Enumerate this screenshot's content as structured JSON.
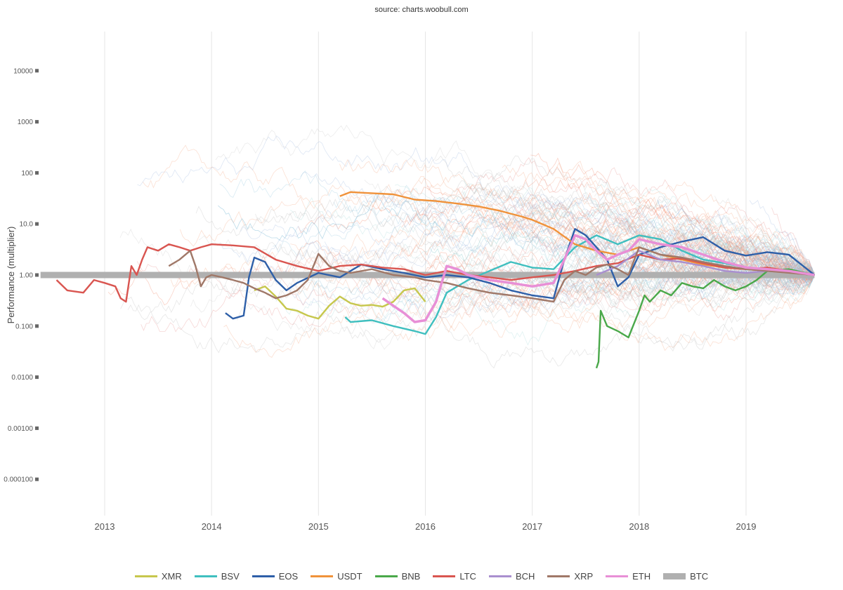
{
  "header": {
    "source": "source: charts.woobull.com"
  },
  "chart_data": {
    "type": "line",
    "title": "",
    "xlabel": "",
    "ylabel": "Performance (multiplier)",
    "y_scale": "log",
    "ylim": [
      3e-05,
      60000
    ],
    "x_range": [
      "2012-05",
      "2019-09"
    ],
    "x_ticks": [
      "2013",
      "2014",
      "2015",
      "2016",
      "2017",
      "2018",
      "2019"
    ],
    "y_ticks": [
      "10000",
      "1000",
      "100",
      "10.0",
      "1.00",
      "0.100",
      "0.0100",
      "0.00100",
      "0.000100"
    ],
    "grid": true,
    "legend_position": "bottom-center",
    "series": [
      {
        "name": "XMR",
        "color": "#c7c74d",
        "points": [
          [
            2014.4,
            0.5
          ],
          [
            2014.5,
            0.6
          ],
          [
            2014.6,
            0.38
          ],
          [
            2014.7,
            0.22
          ],
          [
            2014.8,
            0.2
          ],
          [
            2014.9,
            0.16
          ],
          [
            2015.0,
            0.14
          ],
          [
            2015.1,
            0.25
          ],
          [
            2015.2,
            0.38
          ],
          [
            2015.3,
            0.28
          ],
          [
            2015.4,
            0.25
          ],
          [
            2015.5,
            0.26
          ],
          [
            2015.6,
            0.24
          ],
          [
            2015.7,
            0.3
          ],
          [
            2015.8,
            0.5
          ],
          [
            2015.9,
            0.55
          ],
          [
            2016.0,
            0.3
          ]
        ]
      },
      {
        "name": "BSV",
        "color": "#3fbfbf",
        "points": [
          [
            2015.25,
            0.15
          ],
          [
            2015.3,
            0.12
          ],
          [
            2015.5,
            0.13
          ],
          [
            2015.7,
            0.1
          ],
          [
            2015.9,
            0.08
          ],
          [
            2016.0,
            0.07
          ],
          [
            2016.1,
            0.15
          ],
          [
            2016.2,
            0.45
          ],
          [
            2016.4,
            0.8
          ],
          [
            2016.6,
            1.2
          ],
          [
            2016.8,
            1.8
          ],
          [
            2017.0,
            1.4
          ],
          [
            2017.2,
            1.3
          ],
          [
            2017.4,
            3.5
          ],
          [
            2017.6,
            6.0
          ],
          [
            2017.8,
            4.0
          ],
          [
            2018.0,
            6.0
          ],
          [
            2018.2,
            5.0
          ],
          [
            2018.4,
            3.0
          ],
          [
            2018.6,
            2.0
          ],
          [
            2018.8,
            1.7
          ],
          [
            2019.0,
            1.4
          ],
          [
            2019.2,
            1.3
          ],
          [
            2019.4,
            1.2
          ],
          [
            2019.64,
            1.0
          ]
        ]
      },
      {
        "name": "EOS",
        "color": "#2e5fa8",
        "points": [
          [
            2014.13,
            0.18
          ],
          [
            2014.2,
            0.14
          ],
          [
            2014.3,
            0.16
          ],
          [
            2014.35,
            0.9
          ],
          [
            2014.4,
            2.2
          ],
          [
            2014.5,
            1.8
          ],
          [
            2014.6,
            0.8
          ],
          [
            2014.7,
            0.5
          ],
          [
            2014.8,
            0.7
          ],
          [
            2015.0,
            1.1
          ],
          [
            2015.2,
            0.9
          ],
          [
            2015.4,
            1.6
          ],
          [
            2015.6,
            1.3
          ],
          [
            2015.8,
            1.1
          ],
          [
            2016.0,
            0.9
          ],
          [
            2016.2,
            1.0
          ],
          [
            2016.4,
            0.9
          ],
          [
            2016.6,
            0.7
          ],
          [
            2016.8,
            0.5
          ],
          [
            2017.0,
            0.4
          ],
          [
            2017.2,
            0.35
          ],
          [
            2017.3,
            2.0
          ],
          [
            2017.4,
            8.0
          ],
          [
            2017.5,
            6.0
          ],
          [
            2017.6,
            3.5
          ],
          [
            2017.7,
            2.0
          ],
          [
            2017.8,
            0.6
          ],
          [
            2017.9,
            0.9
          ],
          [
            2018.0,
            2.5
          ],
          [
            2018.2,
            3.5
          ],
          [
            2018.4,
            4.5
          ],
          [
            2018.6,
            5.5
          ],
          [
            2018.8,
            3.0
          ],
          [
            2019.0,
            2.4
          ],
          [
            2019.2,
            2.8
          ],
          [
            2019.4,
            2.5
          ],
          [
            2019.64,
            1.0
          ]
        ]
      },
      {
        "name": "USDT",
        "color": "#f0923a",
        "points": [
          [
            2015.2,
            35
          ],
          [
            2015.3,
            42
          ],
          [
            2015.5,
            40
          ],
          [
            2015.7,
            38
          ],
          [
            2015.9,
            30
          ],
          [
            2016.1,
            28
          ],
          [
            2016.3,
            25
          ],
          [
            2016.5,
            22
          ],
          [
            2016.7,
            18
          ],
          [
            2016.9,
            14
          ],
          [
            2017.0,
            12
          ],
          [
            2017.2,
            8
          ],
          [
            2017.4,
            4
          ],
          [
            2017.6,
            3
          ],
          [
            2017.8,
            2.5
          ],
          [
            2018.0,
            3.5
          ],
          [
            2018.2,
            2.5
          ],
          [
            2018.4,
            2.0
          ],
          [
            2018.6,
            1.6
          ],
          [
            2018.8,
            1.4
          ],
          [
            2019.0,
            1.3
          ],
          [
            2019.2,
            1.2
          ],
          [
            2019.64,
            1.0
          ]
        ]
      },
      {
        "name": "BNB",
        "color": "#4aa84a",
        "points": [
          [
            2017.6,
            0.015
          ],
          [
            2017.62,
            0.02
          ],
          [
            2017.64,
            0.2
          ],
          [
            2017.7,
            0.1
          ],
          [
            2017.8,
            0.08
          ],
          [
            2017.9,
            0.06
          ],
          [
            2018.0,
            0.2
          ],
          [
            2018.05,
            0.4
          ],
          [
            2018.1,
            0.3
          ],
          [
            2018.2,
            0.5
          ],
          [
            2018.3,
            0.4
          ],
          [
            2018.4,
            0.7
          ],
          [
            2018.5,
            0.6
          ],
          [
            2018.6,
            0.55
          ],
          [
            2018.7,
            0.8
          ],
          [
            2018.8,
            0.6
          ],
          [
            2018.9,
            0.5
          ],
          [
            2019.0,
            0.6
          ],
          [
            2019.1,
            0.8
          ],
          [
            2019.2,
            1.2
          ],
          [
            2019.4,
            1.3
          ],
          [
            2019.64,
            1.0
          ]
        ]
      },
      {
        "name": "LTC",
        "color": "#d95550",
        "points": [
          [
            2012.55,
            0.8
          ],
          [
            2012.65,
            0.5
          ],
          [
            2012.8,
            0.45
          ],
          [
            2012.9,
            0.8
          ],
          [
            2013.0,
            0.7
          ],
          [
            2013.1,
            0.6
          ],
          [
            2013.15,
            0.35
          ],
          [
            2013.2,
            0.3
          ],
          [
            2013.25,
            1.5
          ],
          [
            2013.3,
            1.0
          ],
          [
            2013.35,
            2.0
          ],
          [
            2013.4,
            3.5
          ],
          [
            2013.5,
            3.0
          ],
          [
            2013.6,
            4.0
          ],
          [
            2013.7,
            3.5
          ],
          [
            2013.8,
            3.0
          ],
          [
            2013.9,
            3.5
          ],
          [
            2014.0,
            4.0
          ],
          [
            2014.2,
            3.8
          ],
          [
            2014.4,
            3.5
          ],
          [
            2014.6,
            2.0
          ],
          [
            2014.8,
            1.5
          ],
          [
            2015.0,
            1.2
          ],
          [
            2015.2,
            1.5
          ],
          [
            2015.4,
            1.6
          ],
          [
            2015.6,
            1.4
          ],
          [
            2015.8,
            1.3
          ],
          [
            2016.0,
            1.0
          ],
          [
            2016.2,
            1.2
          ],
          [
            2016.4,
            1.0
          ],
          [
            2016.6,
            0.9
          ],
          [
            2016.8,
            0.8
          ],
          [
            2017.0,
            0.9
          ],
          [
            2017.2,
            1.0
          ],
          [
            2017.4,
            1.2
          ],
          [
            2017.6,
            1.5
          ],
          [
            2017.8,
            1.7
          ],
          [
            2018.0,
            2.5
          ],
          [
            2018.2,
            2.0
          ],
          [
            2018.4,
            2.1
          ],
          [
            2018.6,
            1.7
          ],
          [
            2018.8,
            1.4
          ],
          [
            2019.0,
            1.3
          ],
          [
            2019.2,
            1.4
          ],
          [
            2019.4,
            1.2
          ],
          [
            2019.64,
            1.0
          ]
        ]
      },
      {
        "name": "BCH",
        "color": "#a98fcf",
        "points": [
          [
            2017.6,
            1.0
          ],
          [
            2017.8,
            1.5
          ],
          [
            2018.0,
            3.0
          ],
          [
            2018.2,
            2.0
          ],
          [
            2018.4,
            1.8
          ],
          [
            2018.6,
            1.5
          ],
          [
            2018.8,
            1.2
          ],
          [
            2019.0,
            1.1
          ],
          [
            2019.2,
            1.2
          ],
          [
            2019.64,
            1.0
          ]
        ]
      },
      {
        "name": "XRP",
        "color": "#a07868",
        "points": [
          [
            2013.6,
            1.5
          ],
          [
            2013.7,
            2.0
          ],
          [
            2013.8,
            3.0
          ],
          [
            2013.85,
            1.5
          ],
          [
            2013.9,
            0.6
          ],
          [
            2013.95,
            0.9
          ],
          [
            2014.0,
            1.0
          ],
          [
            2014.1,
            0.9
          ],
          [
            2014.2,
            0.8
          ],
          [
            2014.3,
            0.7
          ],
          [
            2014.4,
            0.55
          ],
          [
            2014.5,
            0.45
          ],
          [
            2014.6,
            0.35
          ],
          [
            2014.7,
            0.4
          ],
          [
            2014.8,
            0.5
          ],
          [
            2014.9,
            0.8
          ],
          [
            2015.0,
            2.6
          ],
          [
            2015.1,
            1.5
          ],
          [
            2015.2,
            1.2
          ],
          [
            2015.3,
            1.1
          ],
          [
            2015.5,
            1.3
          ],
          [
            2015.7,
            1.0
          ],
          [
            2015.9,
            0.9
          ],
          [
            2016.0,
            0.8
          ],
          [
            2016.2,
            0.7
          ],
          [
            2016.4,
            0.55
          ],
          [
            2016.6,
            0.45
          ],
          [
            2016.8,
            0.4
          ],
          [
            2017.0,
            0.35
          ],
          [
            2017.2,
            0.3
          ],
          [
            2017.3,
            0.8
          ],
          [
            2017.4,
            1.2
          ],
          [
            2017.5,
            1.0
          ],
          [
            2017.6,
            1.4
          ],
          [
            2017.7,
            1.6
          ],
          [
            2017.8,
            1.3
          ],
          [
            2017.9,
            1.0
          ],
          [
            2018.0,
            3.5
          ],
          [
            2018.2,
            2.5
          ],
          [
            2018.4,
            2.2
          ],
          [
            2018.6,
            1.8
          ],
          [
            2018.8,
            1.5
          ],
          [
            2019.0,
            1.3
          ],
          [
            2019.2,
            1.2
          ],
          [
            2019.64,
            1.0
          ]
        ]
      },
      {
        "name": "ETH",
        "color": "#e88fd6",
        "points": [
          [
            2015.6,
            0.35
          ],
          [
            2015.7,
            0.25
          ],
          [
            2015.8,
            0.18
          ],
          [
            2015.9,
            0.12
          ],
          [
            2016.0,
            0.13
          ],
          [
            2016.1,
            0.3
          ],
          [
            2016.2,
            1.5
          ],
          [
            2016.3,
            1.3
          ],
          [
            2016.4,
            1.0
          ],
          [
            2016.6,
            0.8
          ],
          [
            2016.8,
            0.7
          ],
          [
            2017.0,
            0.6
          ],
          [
            2017.2,
            0.7
          ],
          [
            2017.3,
            2.0
          ],
          [
            2017.4,
            6.0
          ],
          [
            2017.5,
            5.0
          ],
          [
            2017.6,
            3.0
          ],
          [
            2017.7,
            2.0
          ],
          [
            2017.8,
            2.5
          ],
          [
            2017.9,
            3.0
          ],
          [
            2018.0,
            5.0
          ],
          [
            2018.2,
            4.0
          ],
          [
            2018.4,
            3.5
          ],
          [
            2018.6,
            2.5
          ],
          [
            2018.8,
            1.8
          ],
          [
            2019.0,
            1.4
          ],
          [
            2019.2,
            1.3
          ],
          [
            2019.4,
            1.2
          ],
          [
            2019.64,
            1.0
          ]
        ]
      },
      {
        "name": "BTC",
        "color": "#b0b0b0",
        "points": [
          [
            2012.4,
            1.0
          ],
          [
            2019.64,
            1.0
          ]
        ]
      }
    ]
  }
}
